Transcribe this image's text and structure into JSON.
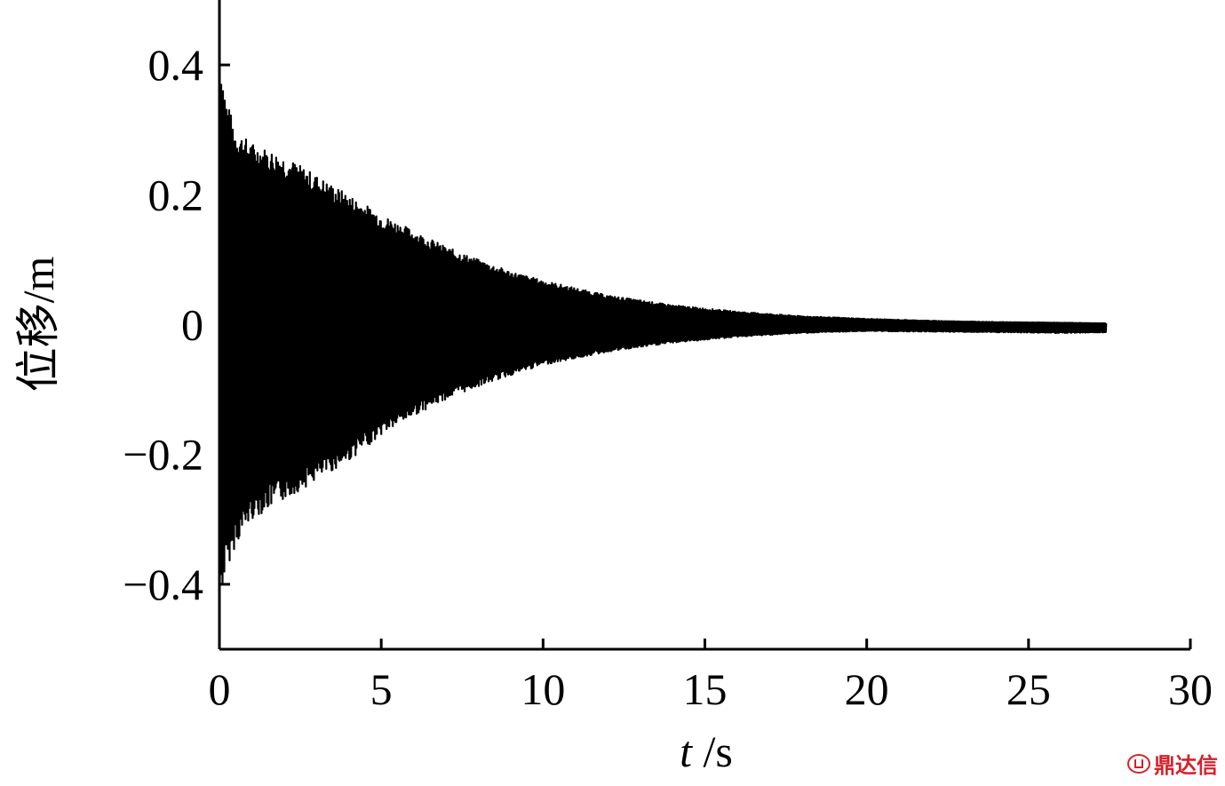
{
  "chart_data": {
    "type": "line",
    "xlabel_var": "t",
    "xlabel_unit": " /s",
    "ylabel": "位移/m",
    "xlim": [
      0,
      30
    ],
    "ylim": [
      -0.5,
      0.5
    ],
    "x_ticks": [
      0,
      5,
      10,
      15,
      20,
      25,
      30
    ],
    "x_tick_labels": [
      "0",
      "5",
      "10",
      "15",
      "20",
      "25",
      "30"
    ],
    "y_ticks": [
      0.4,
      0.2,
      0,
      -0.2,
      -0.4
    ],
    "y_tick_labels": [
      "0.4",
      "0.2",
      "0",
      "−0.2",
      "−0.4"
    ],
    "grid": false,
    "series": [
      {
        "color": "#000000",
        "t_end": 27.4,
        "envelope": {
          "t": [
            0,
            0.2,
            0.5,
            1,
            2,
            3,
            4,
            5,
            6,
            7,
            8,
            9,
            10,
            12,
            14,
            16,
            18,
            20,
            22,
            24,
            26,
            27.4
          ],
          "upper": [
            0.42,
            0.35,
            0.3,
            0.28,
            0.26,
            0.23,
            0.2,
            0.17,
            0.145,
            0.12,
            0.1,
            0.082,
            0.068,
            0.045,
            0.03,
            0.02,
            0.013,
            0.009,
            0.006,
            0.004,
            0.003,
            0.002
          ],
          "lower": [
            -0.43,
            -0.38,
            -0.34,
            -0.3,
            -0.27,
            -0.24,
            -0.21,
            -0.17,
            -0.14,
            -0.115,
            -0.095,
            -0.078,
            -0.062,
            -0.042,
            -0.028,
            -0.019,
            -0.013,
            -0.01,
            -0.011,
            -0.012,
            -0.013,
            -0.012
          ]
        }
      }
    ]
  },
  "watermark": {
    "text": "鼎达信",
    "logo_icon": "dingdaxin-logo-icon"
  }
}
